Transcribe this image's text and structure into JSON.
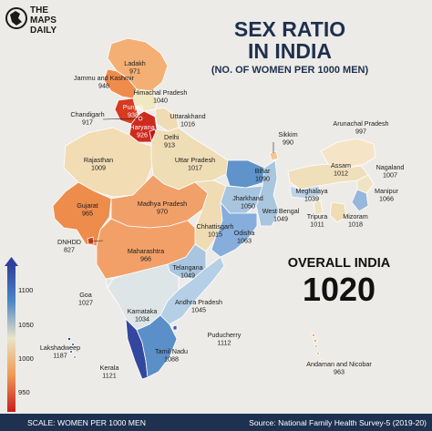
{
  "brand": {
    "logo_lines": [
      "THE",
      "MAPS",
      "DAILY"
    ]
  },
  "title": {
    "line1": "SEX RATIO",
    "line2": "IN INDIA",
    "subtitle": "(NO. OF WOMEN PER 1000 MEN)"
  },
  "overall": {
    "label": "OVERALL INDIA",
    "value": "1020"
  },
  "footer": {
    "scale_text": "SCALE: WOMEN PER 1000 MEN",
    "source_text": "Source: National Family Health Survey-5 (2019-20)"
  },
  "legend": {
    "ticks": [
      "1100",
      "1050",
      "1000",
      "950",
      "900"
    ],
    "color_stops": [
      "#2f3f9a",
      "#4c86c8",
      "#e9e4c8",
      "#f09a55",
      "#c81e1e"
    ]
  },
  "colors": {
    "title": "#1e2f4f",
    "footer_bg": "#1f3151",
    "background": "#ecebe7"
  },
  "states": [
    {
      "name": "Ladakh",
      "value": "971"
    },
    {
      "name": "Jammu and Kashmir",
      "value": "948"
    },
    {
      "name": "Himachal Pradesh",
      "value": "1040"
    },
    {
      "name": "Punjab",
      "value": "938"
    },
    {
      "name": "Chandigarh",
      "value": "917"
    },
    {
      "name": "Uttarakhand",
      "value": "1016"
    },
    {
      "name": "Haryana",
      "value": "926"
    },
    {
      "name": "Delhi",
      "value": "913"
    },
    {
      "name": "Rajasthan",
      "value": "1009"
    },
    {
      "name": "Uttar Pradesh",
      "value": "1017"
    },
    {
      "name": "Sikkim",
      "value": "990"
    },
    {
      "name": "Arunachal Pradesh",
      "value": "997"
    },
    {
      "name": "Assam",
      "value": "1012"
    },
    {
      "name": "Nagaland",
      "value": "1007"
    },
    {
      "name": "Bihar",
      "value": "1090"
    },
    {
      "name": "Meghalaya",
      "value": "1039"
    },
    {
      "name": "Manipur",
      "value": "1066"
    },
    {
      "name": "Gujarat",
      "value": "965"
    },
    {
      "name": "Madhya Pradesh",
      "value": "970"
    },
    {
      "name": "Jharkhand",
      "value": "1050"
    },
    {
      "name": "West Bengal",
      "value": "1049"
    },
    {
      "name": "Tripura",
      "value": "1011"
    },
    {
      "name": "Mizoram",
      "value": "1018"
    },
    {
      "name": "DNHDD",
      "value": "827"
    },
    {
      "name": "Chhattisgarh",
      "value": "1015"
    },
    {
      "name": "Odisha",
      "value": "1063"
    },
    {
      "name": "Maharashtra",
      "value": "966"
    },
    {
      "name": "Telangana",
      "value": "1049"
    },
    {
      "name": "Goa",
      "value": "1027"
    },
    {
      "name": "Andhra Pradesh",
      "value": "1045"
    },
    {
      "name": "Karnataka",
      "value": "1034"
    },
    {
      "name": "Puducherry",
      "value": "1112"
    },
    {
      "name": "Lakshadweep",
      "value": "1187"
    },
    {
      "name": "Tamil Nadu",
      "value": "1088"
    },
    {
      "name": "Kerala",
      "value": "1121"
    },
    {
      "name": "Andaman and Nicobar",
      "value": "963"
    }
  ]
}
